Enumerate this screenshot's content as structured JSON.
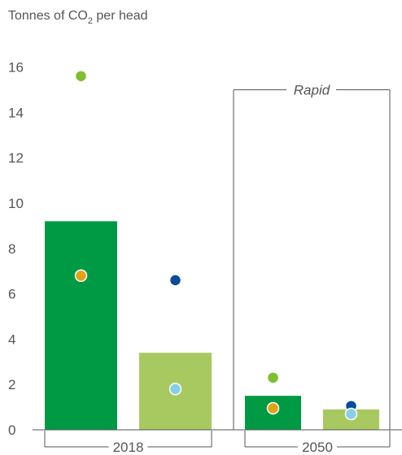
{
  "chart_data": {
    "type": "bar",
    "title": "Tonnes of CO",
    "title_subscript": "2",
    "title_suffix": " per head",
    "ylim": [
      0,
      16
    ],
    "yticks": [
      0,
      2,
      4,
      6,
      8,
      10,
      12,
      14,
      16
    ],
    "groups": [
      "2018",
      "2050"
    ],
    "annotation": "Rapid",
    "colors": {
      "bar_dark": "#009a44",
      "bar_light": "#a8c95f",
      "dot_lightgreen": "#7fbe2f",
      "dot_orange": "#e1a314",
      "dot_navy": "#0a4b9b",
      "dot_lightblue": "#87cfe8"
    },
    "bars": [
      {
        "group": "2018",
        "color": "bar_dark",
        "value": 9.2
      },
      {
        "group": "2018",
        "color": "bar_light",
        "value": 3.4
      },
      {
        "group": "2050",
        "color": "bar_dark",
        "value": 1.5
      },
      {
        "group": "2050",
        "color": "bar_light",
        "value": 0.9
      }
    ],
    "dots": [
      {
        "bar": 0,
        "color": "dot_lightgreen",
        "value": 15.6
      },
      {
        "bar": 0,
        "color": "dot_orange",
        "value": 6.8
      },
      {
        "bar": 1,
        "color": "dot_navy",
        "value": 6.6
      },
      {
        "bar": 1,
        "color": "dot_lightblue",
        "value": 1.8
      },
      {
        "bar": 2,
        "color": "dot_lightgreen",
        "value": 2.3
      },
      {
        "bar": 2,
        "color": "dot_orange",
        "value": 0.95
      },
      {
        "bar": 3,
        "color": "dot_navy",
        "value": 1.05
      },
      {
        "bar": 3,
        "color": "dot_lightblue",
        "value": 0.7
      }
    ]
  }
}
